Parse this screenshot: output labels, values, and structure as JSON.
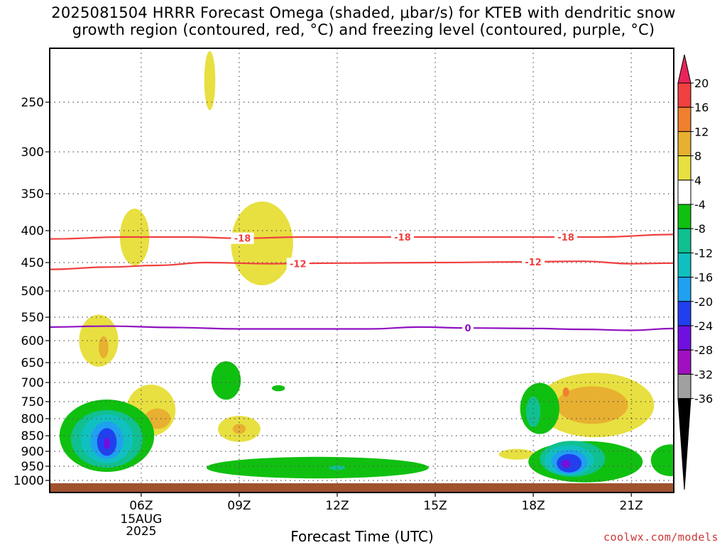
{
  "title": {
    "line1": "2025081504 HRRR Forecast Omega (shaded, μbar/s) for KTEB with dendritic snow",
    "line2": "growth region (contoured, red, °C) and freezing level (contoured, purple, °C)"
  },
  "xlabel": "Forecast Time (UTC)",
  "credit": "coolwx.com/models",
  "chart_data": {
    "type": "contour-heatmap",
    "x_axis": {
      "range_hours_utc": [
        3.2,
        22.3
      ],
      "ticks": [
        {
          "hour": 6,
          "label": "06Z",
          "sub": [
            "15AUG",
            "2025"
          ]
        },
        {
          "hour": 9,
          "label": "09Z"
        },
        {
          "hour": 12,
          "label": "12Z"
        },
        {
          "hour": 15,
          "label": "15Z"
        },
        {
          "hour": 18,
          "label": "18Z"
        },
        {
          "hour": 21,
          "label": "21Z"
        }
      ]
    },
    "y_axis": {
      "units": "hPa",
      "reversed": true,
      "ticks": [
        {
          "p": 250,
          "label": "250"
        },
        {
          "p": 300,
          "label": "300"
        },
        {
          "p": 350,
          "label": "350"
        },
        {
          "p": 400,
          "label": "400"
        },
        {
          "p": 450,
          "label": "450"
        },
        {
          "p": 500,
          "label": "500"
        },
        {
          "p": 550,
          "label": "550"
        },
        {
          "p": 600,
          "label": "600"
        },
        {
          "p": 650,
          "label": "650"
        },
        {
          "p": 700,
          "label": "700"
        },
        {
          "p": 750,
          "label": "750"
        },
        {
          "p": 800,
          "label": "800"
        },
        {
          "p": 850,
          "label": "850"
        },
        {
          "p": 900,
          "label": "900"
        },
        {
          "p": 950,
          "label": "950"
        },
        {
          "p": 1000,
          "label": "1000"
        }
      ]
    },
    "grid": true,
    "colorbar": {
      "levels": [
        20,
        16,
        12,
        8,
        4,
        -4,
        -8,
        -12,
        -16,
        -20,
        -24,
        -28,
        -32,
        -36
      ],
      "colors": [
        "#e8245a",
        "#f04040",
        "#f08030",
        "#e8b030",
        "#e8e040",
        "#ffffff",
        "#10c010",
        "#10c090",
        "#10c0c0",
        "#20a0f0",
        "#2040f0",
        "#7010e0",
        "#a010c0",
        "#a0a0a0",
        "#000000"
      ]
    },
    "omega_regions": [
      {
        "shade": 4,
        "color": "#e8e040",
        "t": 8.1,
        "p": 230,
        "dt": 0.17,
        "dp": 28
      },
      {
        "shade": 4,
        "color": "#e8e040",
        "t": 5.8,
        "p": 410,
        "dt": 0.45,
        "dp": 45
      },
      {
        "shade": 4,
        "color": "#e8e040",
        "t": 9.7,
        "p": 420,
        "dt": 0.95,
        "dp": 70
      },
      {
        "shade": 4,
        "color": "#e8e040",
        "t": 4.7,
        "p": 600,
        "dt": 0.6,
        "dp": 60
      },
      {
        "shade": 8,
        "color": "#e8b030",
        "t": 4.85,
        "p": 615,
        "dt": 0.15,
        "dp": 25
      },
      {
        "shade": 4,
        "color": "#e8e040",
        "t": 6.3,
        "p": 775,
        "dt": 0.75,
        "dp": 75
      },
      {
        "shade": 8,
        "color": "#e8b030",
        "t": 6.5,
        "p": 800,
        "dt": 0.4,
        "dp": 30
      },
      {
        "shade": 12,
        "color": "#f08030",
        "t": 6.0,
        "p": 800,
        "dt": 0.1,
        "dp": 8
      },
      {
        "shade": 4,
        "color": "#e8e040",
        "t": 9.0,
        "p": 830,
        "dt": 0.65,
        "dp": 40
      },
      {
        "shade": 8,
        "color": "#e8b030",
        "t": 9.0,
        "p": 830,
        "dt": 0.2,
        "dp": 15
      },
      {
        "shade": 4,
        "color": "#e8e040",
        "t": 17.5,
        "p": 910,
        "dt": 0.55,
        "dp": 18
      },
      {
        "shade": 4,
        "color": "#e8e040",
        "t": 19.9,
        "p": 760,
        "dt": 1.8,
        "dp": 95
      },
      {
        "shade": 8,
        "color": "#e8b030",
        "t": 19.8,
        "p": 760,
        "dt": 1.1,
        "dp": 55
      },
      {
        "shade": 12,
        "color": "#f08030",
        "t": 19.0,
        "p": 725,
        "dt": 0.1,
        "dp": 12
      },
      {
        "shade": -4,
        "color": "#10c010",
        "t": 8.6,
        "p": 695,
        "dt": 0.45,
        "dp": 50
      },
      {
        "shade": -4,
        "color": "#10c010",
        "t": 10.2,
        "p": 715,
        "dt": 0.2,
        "dp": 8
      },
      {
        "shade": -4,
        "color": "#10c010",
        "t": 4.95,
        "p": 850,
        "dt": 1.45,
        "dp": 120
      },
      {
        "shade": -8,
        "color": "#10c090",
        "t": 4.95,
        "p": 860,
        "dt": 1.1,
        "dp": 95
      },
      {
        "shade": -12,
        "color": "#10c0c0",
        "t": 4.95,
        "p": 860,
        "dt": 0.8,
        "dp": 80
      },
      {
        "shade": -16,
        "color": "#20a0f0",
        "t": 4.95,
        "p": 865,
        "dt": 0.5,
        "dp": 62
      },
      {
        "shade": -20,
        "color": "#2040f0",
        "t": 4.95,
        "p": 870,
        "dt": 0.3,
        "dp": 45
      },
      {
        "shade": -28,
        "color": "#7010e0",
        "t": 4.95,
        "p": 875,
        "dt": 0.1,
        "dp": 18
      },
      {
        "shade": -4,
        "color": "#10c010",
        "t": 11.4,
        "p": 955,
        "dt": 3.4,
        "dp": 38
      },
      {
        "shade": -8,
        "color": "#10c090",
        "t": 12.0,
        "p": 955,
        "dt": 0.25,
        "dp": 8
      },
      {
        "shade": -4,
        "color": "#10c010",
        "t": 18.2,
        "p": 770,
        "dt": 0.6,
        "dp": 75
      },
      {
        "shade": -8,
        "color": "#10c090",
        "t": 18.0,
        "p": 780,
        "dt": 0.22,
        "dp": 45
      },
      {
        "shade": -4,
        "color": "#10c010",
        "t": 19.6,
        "p": 935,
        "dt": 1.75,
        "dp": 70
      },
      {
        "shade": -8,
        "color": "#10c090",
        "t": 19.2,
        "p": 925,
        "dt": 1.0,
        "dp": 62
      },
      {
        "shade": -12,
        "color": "#10c0c0",
        "t": 19.1,
        "p": 930,
        "dt": 0.75,
        "dp": 52
      },
      {
        "shade": -16,
        "color": "#20a0f0",
        "t": 19.1,
        "p": 935,
        "dt": 0.55,
        "dp": 42
      },
      {
        "shade": -20,
        "color": "#2040f0",
        "t": 19.1,
        "p": 940,
        "dt": 0.38,
        "dp": 32
      },
      {
        "shade": -24,
        "color": "#7010e0",
        "t": 19.0,
        "p": 942,
        "dt": 0.15,
        "dp": 14
      },
      {
        "shade": -4,
        "color": "#10c010",
        "t": 22.2,
        "p": 930,
        "dt": 0.6,
        "dp": 55
      }
    ],
    "contours": [
      {
        "label": "-18",
        "color": "#f04040",
        "points": [
          [
            3.2,
            413
          ],
          [
            5.5,
            410
          ],
          [
            7.5,
            410
          ],
          [
            9.0,
            412
          ],
          [
            11.0,
            410
          ],
          [
            14.0,
            410
          ],
          [
            17.0,
            410
          ],
          [
            20.0,
            410
          ],
          [
            22.3,
            406
          ]
        ],
        "label_hours": [
          9.1,
          14.0,
          19.0
        ]
      },
      {
        "label": "-12",
        "color": "#f04040",
        "points": [
          [
            3.2,
            462
          ],
          [
            5.0,
            458
          ],
          [
            6.5,
            455
          ],
          [
            8.0,
            450
          ],
          [
            10.0,
            452
          ],
          [
            12.0,
            451
          ],
          [
            15.0,
            450
          ],
          [
            17.5,
            449
          ],
          [
            19.5,
            448
          ],
          [
            21.0,
            452
          ],
          [
            22.3,
            451
          ]
        ],
        "label_hours": [
          10.8,
          18.0
        ]
      },
      {
        "label": "0",
        "color": "#9010c0",
        "points": [
          [
            3.2,
            571
          ],
          [
            5.0,
            569
          ],
          [
            7.0,
            572
          ],
          [
            9.0,
            575
          ],
          [
            11.0,
            575
          ],
          [
            13.0,
            575
          ],
          [
            14.5,
            571
          ],
          [
            16.0,
            573
          ],
          [
            18.0,
            574
          ],
          [
            19.5,
            576
          ],
          [
            21.0,
            578
          ],
          [
            22.3,
            574
          ]
        ],
        "label_hours": [
          16.0
        ]
      }
    ]
  }
}
